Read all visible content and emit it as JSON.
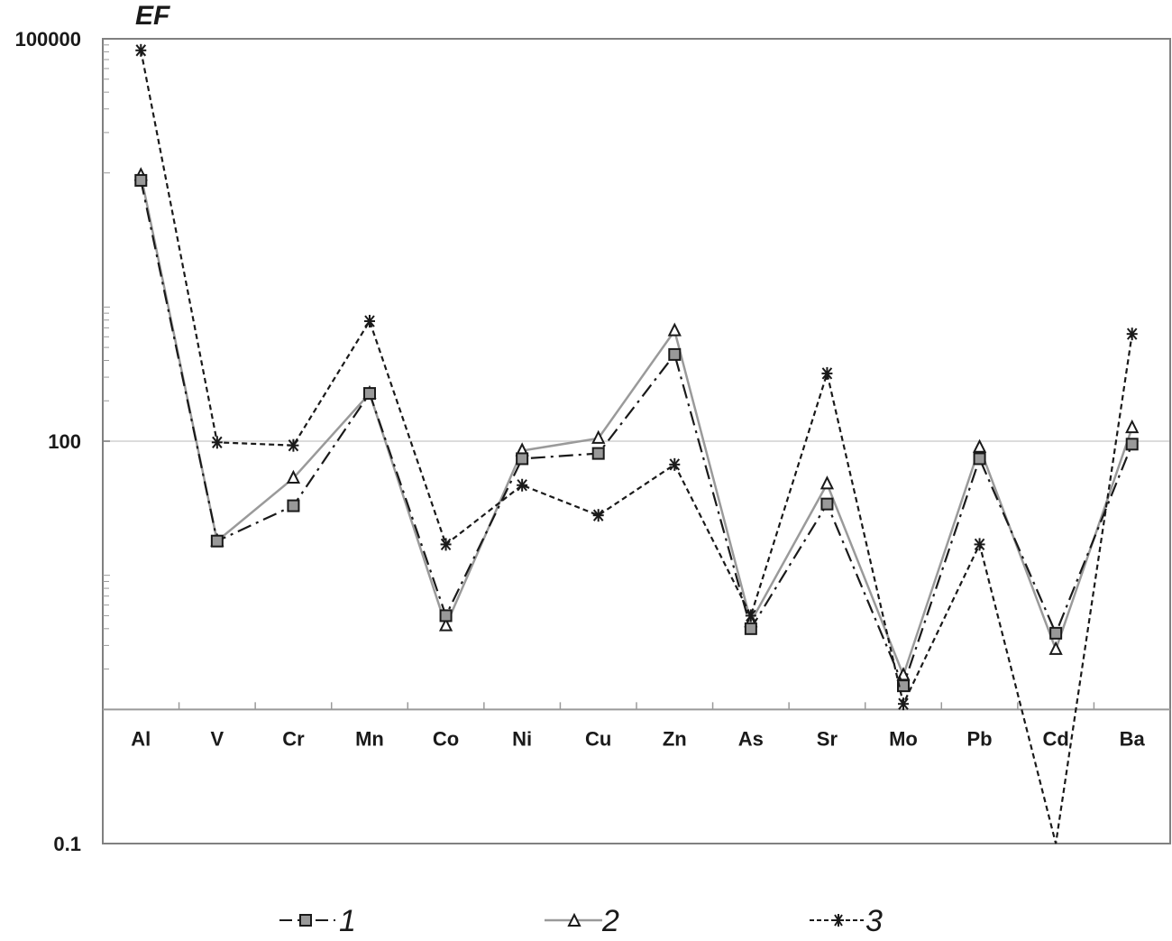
{
  "chart_data": {
    "type": "line",
    "title": "EF",
    "xlabel": "",
    "ylabel": "EF",
    "yscale": "log",
    "ylim": [
      0.1,
      100000
    ],
    "y_tick_labels": [
      "100000",
      "100",
      "0.1"
    ],
    "y_ticks": [
      100000,
      100,
      0.1
    ],
    "x_axis_crosses_at": 1,
    "grid": "horizontal line at 100 only",
    "legend_position": "bottom",
    "categories": [
      "Al",
      "V",
      "Cr",
      "Mn",
      "Co",
      "Ni",
      "Cu",
      "Zn",
      "As",
      "Sr",
      "Mo",
      "Pb",
      "Cd",
      "Ba"
    ],
    "series": [
      {
        "name": "1",
        "marker": "square",
        "line": "dash-dot",
        "color": "#1a1a1a",
        "marker_fill": "#999999",
        "values": [
          8800,
          18,
          33,
          227,
          5.0,
          74,
          81,
          443,
          4.0,
          34,
          1.5,
          74,
          3.7,
          95
        ]
      },
      {
        "name": "2",
        "marker": "triangle",
        "line": "solid",
        "color": "#9a9a9a",
        "marker_fill": "#ffffff",
        "values": [
          9600,
          18,
          53,
          227,
          4.2,
          85,
          105,
          665,
          4.5,
          48,
          1.8,
          90,
          2.8,
          126
        ]
      },
      {
        "name": "3",
        "marker": "asterisk",
        "line": "dashed",
        "color": "#1a1a1a",
        "marker_fill": "#1a1a1a",
        "values": [
          82000,
          98,
          93,
          785,
          17,
          47,
          28,
          67,
          5.0,
          320,
          1.1,
          17,
          0.1,
          630
        ]
      }
    ]
  },
  "legend": {
    "items": [
      {
        "label": "1"
      },
      {
        "label": "2"
      },
      {
        "label": "3"
      }
    ]
  }
}
